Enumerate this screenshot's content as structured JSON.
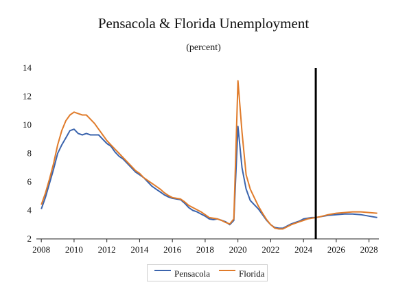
{
  "chart_data": {
    "type": "line",
    "title": "Pensacola & Florida Unemployment",
    "subtitle": "(percent)",
    "xlabel": "",
    "ylabel": "",
    "xlim": [
      2007.7,
      2028.6
    ],
    "ylim": [
      2,
      14
    ],
    "yticks": [
      "2",
      "4",
      "6",
      "8",
      "10",
      "12",
      "14"
    ],
    "xticks": [
      "2008",
      "2010",
      "2012",
      "2014",
      "2016",
      "2018",
      "2020",
      "2022",
      "2024",
      "2026",
      "2028"
    ],
    "grid": false,
    "legend_position": "bottom-center",
    "vertical_marker_x": 2024.75,
    "series": [
      {
        "name": "Pensacola",
        "color": "#3b64ad",
        "x": [
          2008.0,
          2008.25,
          2008.5,
          2008.75,
          2009.0,
          2009.25,
          2009.5,
          2009.75,
          2010.0,
          2010.25,
          2010.5,
          2010.75,
          2011.0,
          2011.25,
          2011.5,
          2011.75,
          2012.0,
          2012.25,
          2012.5,
          2012.75,
          2013.0,
          2013.25,
          2013.5,
          2013.75,
          2014.0,
          2014.25,
          2014.5,
          2014.75,
          2015.0,
          2015.25,
          2015.5,
          2015.75,
          2016.0,
          2016.25,
          2016.5,
          2016.75,
          2017.0,
          2017.25,
          2017.5,
          2017.75,
          2018.0,
          2018.25,
          2018.5,
          2018.75,
          2019.0,
          2019.25,
          2019.5,
          2019.75,
          2020.0,
          2020.25,
          2020.5,
          2020.75,
          2021.0,
          2021.25,
          2021.5,
          2021.75,
          2022.0,
          2022.25,
          2022.5,
          2022.75,
          2023.0,
          2023.25,
          2023.5,
          2023.75,
          2024.0,
          2024.25,
          2024.5,
          2024.75,
          2025.0,
          2025.5,
          2026.0,
          2026.5,
          2027.0,
          2027.5,
          2028.0,
          2028.5
        ],
        "y": [
          4.1,
          4.9,
          5.9,
          6.9,
          8.0,
          8.6,
          9.1,
          9.6,
          9.7,
          9.4,
          9.3,
          9.4,
          9.3,
          9.3,
          9.3,
          9.0,
          8.7,
          8.5,
          8.1,
          7.8,
          7.6,
          7.3,
          7.0,
          6.7,
          6.5,
          6.3,
          6.0,
          5.7,
          5.5,
          5.3,
          5.1,
          4.95,
          4.85,
          4.8,
          4.75,
          4.5,
          4.2,
          4.0,
          3.9,
          3.75,
          3.6,
          3.4,
          3.35,
          3.4,
          3.3,
          3.2,
          3.0,
          3.3,
          9.9,
          7.0,
          5.5,
          4.7,
          4.4,
          4.1,
          3.7,
          3.3,
          3.0,
          2.8,
          2.75,
          2.75,
          2.9,
          3.05,
          3.15,
          3.25,
          3.4,
          3.45,
          3.5,
          3.5,
          3.55,
          3.65,
          3.7,
          3.75,
          3.75,
          3.7,
          3.6,
          3.5
        ]
      },
      {
        "name": "Florida",
        "color": "#e07b2a",
        "x": [
          2008.0,
          2008.25,
          2008.5,
          2008.75,
          2009.0,
          2009.25,
          2009.5,
          2009.75,
          2010.0,
          2010.25,
          2010.5,
          2010.75,
          2011.0,
          2011.25,
          2011.5,
          2011.75,
          2012.0,
          2012.25,
          2012.5,
          2012.75,
          2013.0,
          2013.25,
          2013.5,
          2013.75,
          2014.0,
          2014.25,
          2014.5,
          2014.75,
          2015.0,
          2015.25,
          2015.5,
          2015.75,
          2016.0,
          2016.25,
          2016.5,
          2016.75,
          2017.0,
          2017.25,
          2017.5,
          2017.75,
          2018.0,
          2018.25,
          2018.5,
          2018.75,
          2019.0,
          2019.25,
          2019.5,
          2019.75,
          2020.0,
          2020.25,
          2020.5,
          2020.75,
          2021.0,
          2021.25,
          2021.5,
          2021.75,
          2022.0,
          2022.25,
          2022.5,
          2022.75,
          2023.0,
          2023.25,
          2023.5,
          2023.75,
          2024.0,
          2024.25,
          2024.5,
          2024.75,
          2025.0,
          2025.5,
          2026.0,
          2026.5,
          2027.0,
          2027.5,
          2028.0,
          2028.5
        ],
        "y": [
          4.4,
          5.2,
          6.2,
          7.3,
          8.6,
          9.6,
          10.3,
          10.7,
          10.9,
          10.8,
          10.7,
          10.7,
          10.4,
          10.1,
          9.7,
          9.3,
          8.9,
          8.6,
          8.3,
          8.0,
          7.7,
          7.4,
          7.1,
          6.8,
          6.6,
          6.3,
          6.1,
          5.9,
          5.7,
          5.5,
          5.25,
          5.05,
          4.9,
          4.85,
          4.8,
          4.6,
          4.35,
          4.2,
          4.05,
          3.9,
          3.7,
          3.5,
          3.45,
          3.4,
          3.3,
          3.15,
          3.05,
          3.4,
          13.1,
          9.5,
          6.5,
          5.5,
          4.9,
          4.3,
          3.8,
          3.35,
          3.0,
          2.75,
          2.7,
          2.7,
          2.85,
          3.0,
          3.1,
          3.2,
          3.3,
          3.4,
          3.45,
          3.5,
          3.55,
          3.7,
          3.8,
          3.85,
          3.9,
          3.9,
          3.85,
          3.8
        ]
      }
    ]
  }
}
